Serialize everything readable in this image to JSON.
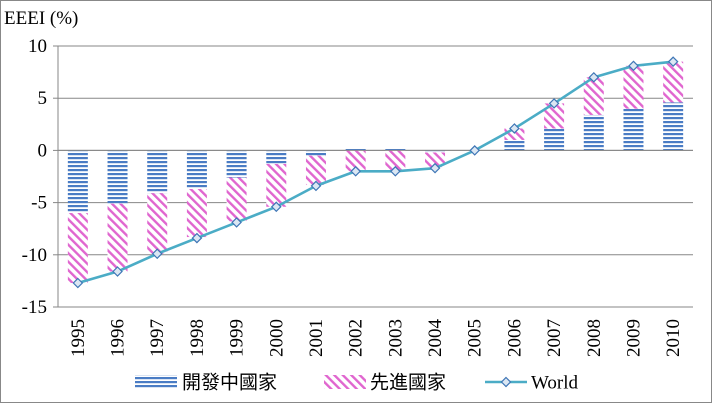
{
  "chart_data": {
    "type": "bar",
    "title": "",
    "ylabel": "EEEI (%)",
    "xlabel": "",
    "ylim": [
      -15,
      10
    ],
    "yticks": [
      10,
      5,
      0,
      -5,
      -10,
      -15
    ],
    "grid": true,
    "legend_position": "bottom",
    "categories": [
      "1995",
      "1996",
      "1997",
      "1998",
      "1999",
      "2000",
      "2001",
      "2002",
      "2003",
      "2004",
      "2005",
      "2006",
      "2007",
      "2008",
      "2009",
      "2010"
    ],
    "series": [
      {
        "name": "開發中國家",
        "kind": "stacked-bar",
        "pattern": "horizontal-stripes",
        "color": "#4a7cc4",
        "values": [
          -6.0,
          -5.1,
          -4.1,
          -3.7,
          -2.6,
          -1.3,
          -0.5,
          0.2,
          0.2,
          -0.2,
          0.0,
          1.0,
          2.1,
          3.4,
          4.0,
          4.6
        ]
      },
      {
        "name": "先進國家",
        "kind": "stacked-bar",
        "pattern": "diagonal-stripes",
        "color": "#e066cf",
        "values": [
          -6.7,
          -6.5,
          -5.8,
          -4.6,
          -4.2,
          -4.1,
          -2.8,
          -2.0,
          -2.0,
          -1.4,
          0.0,
          1.1,
          2.4,
          3.6,
          4.1,
          3.9
        ]
      },
      {
        "name": "World",
        "kind": "line",
        "marker": "diamond",
        "color": "#4bacc6",
        "values": [
          -12.7,
          -11.6,
          -9.9,
          -8.4,
          -6.9,
          -5.4,
          -3.4,
          -2.0,
          -2.0,
          -1.7,
          0.0,
          2.1,
          4.5,
          7.0,
          8.1,
          8.5
        ]
      }
    ]
  }
}
